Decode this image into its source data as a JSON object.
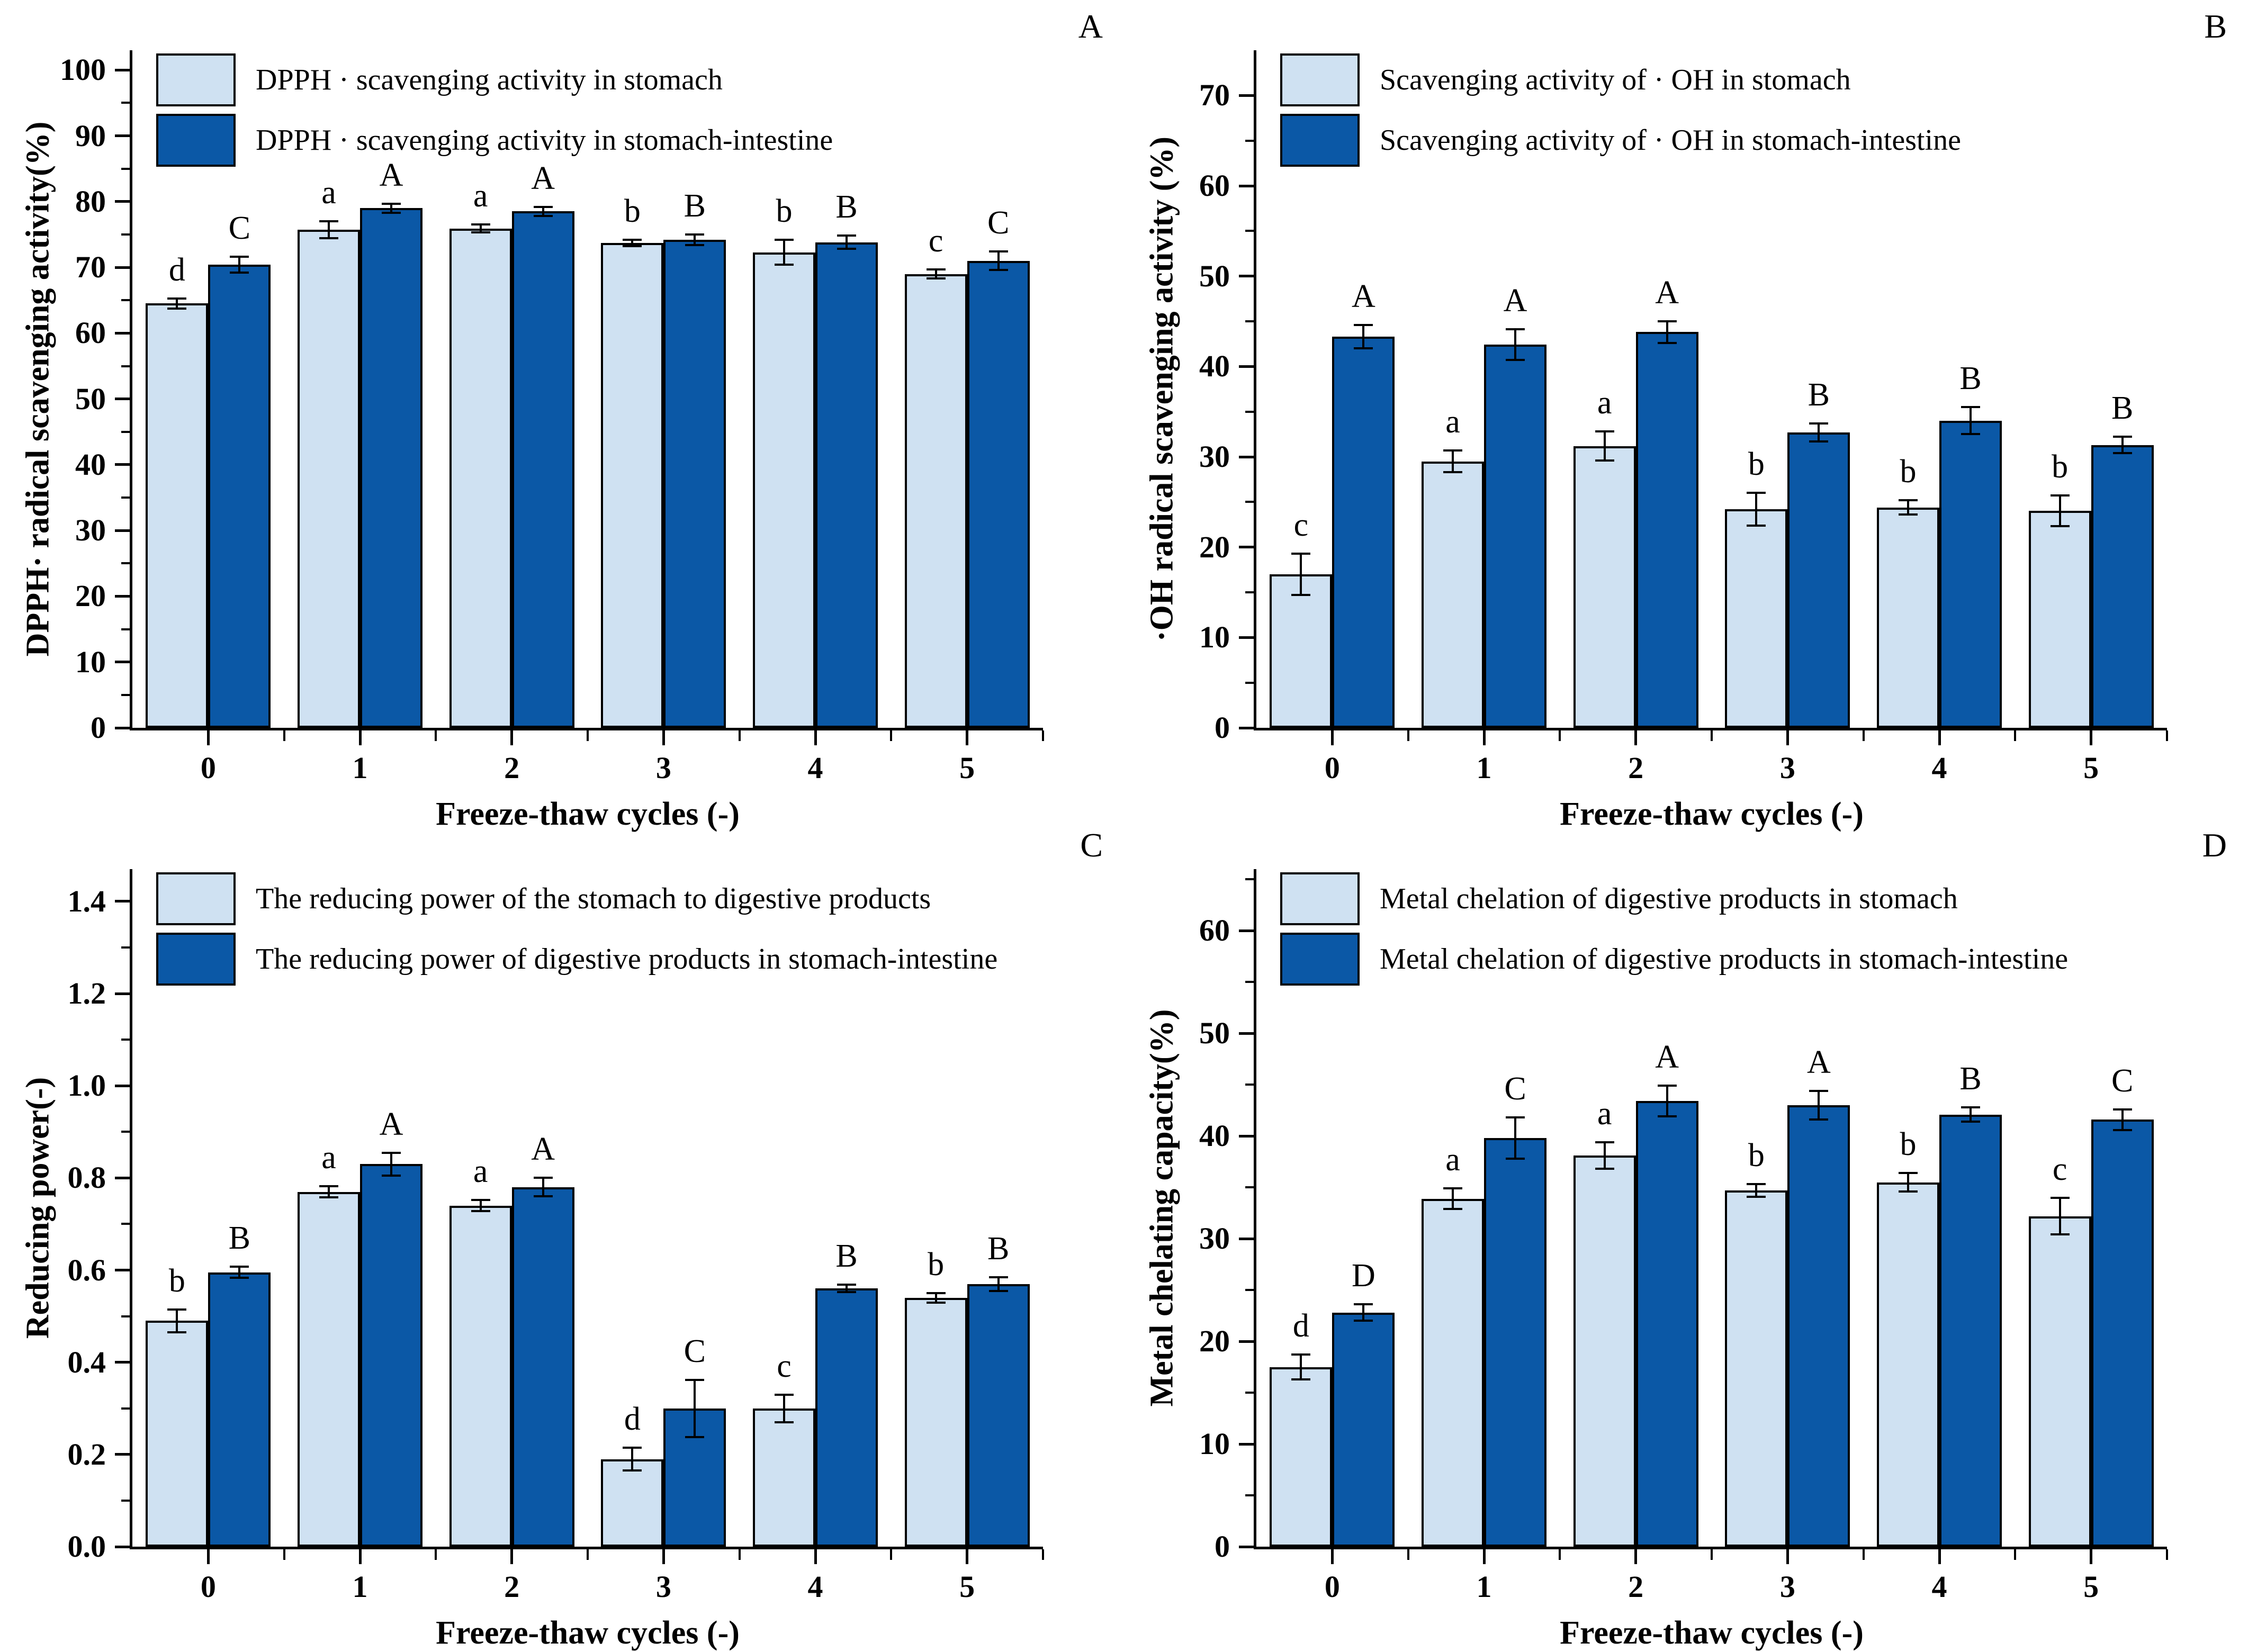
{
  "colors": {
    "light": "#cfe1f2",
    "dark": "#0b58a6",
    "edge": "#000000"
  },
  "chart_data": [
    {
      "type": "bar",
      "corner_label": "A",
      "ylabel": "DPPH· radical scavenging activity(%)",
      "xlabel": "Freeze-thaw cycles (-)",
      "categories": [
        "0",
        "1",
        "2",
        "3",
        "4",
        "5"
      ],
      "ylim": [
        0,
        103
      ],
      "ytick_step": 10,
      "ytick_max": 100,
      "y_minor_step": 5,
      "tick_decimals": 0,
      "grid": false,
      "legend_position": "top-left",
      "series": [
        {
          "name": "DPPH · scavenging activity in stomach",
          "color": "light",
          "values": [
            64.5,
            75.7,
            75.9,
            73.7,
            72.3,
            69.0
          ],
          "errors": [
            0.8,
            1.3,
            0.6,
            0.5,
            1.9,
            0.7
          ],
          "sig_letters": [
            "d",
            "a",
            "a",
            "b",
            "b",
            "c"
          ]
        },
        {
          "name": "DPPH · scavenging activity in stomach-intestine",
          "color": "dark",
          "values": [
            70.4,
            79.0,
            78.5,
            74.2,
            73.8,
            71.0
          ],
          "errors": [
            1.2,
            0.7,
            0.7,
            0.8,
            1.0,
            1.4
          ],
          "sig_letters": [
            "C",
            "A",
            "A",
            "B",
            "B",
            "C"
          ]
        }
      ]
    },
    {
      "type": "bar",
      "corner_label": "B",
      "ylabel": "·OH radical scavenging activity (%)",
      "xlabel": "Freeze-thaw cycles (-)",
      "categories": [
        "0",
        "1",
        "2",
        "3",
        "4",
        "5"
      ],
      "ylim": [
        0,
        75
      ],
      "ytick_step": 10,
      "ytick_max": 70,
      "y_minor_step": 5,
      "tick_decimals": 0,
      "grid": false,
      "legend_position": "top-left",
      "series": [
        {
          "name": "Scavenging activity of · OH in stomach",
          "color": "light",
          "values": [
            17.0,
            29.5,
            31.2,
            24.2,
            24.4,
            24.0
          ],
          "errors": [
            2.3,
            1.2,
            1.6,
            1.8,
            0.8,
            1.7
          ],
          "sig_letters": [
            "c",
            "a",
            "a",
            "b",
            "b",
            "b"
          ]
        },
        {
          "name": "Scavenging activity of · OH in stomach-intestine",
          "color": "dark",
          "values": [
            43.3,
            42.4,
            43.8,
            32.7,
            34.0,
            31.3
          ],
          "errors": [
            1.3,
            1.7,
            1.2,
            1.0,
            1.5,
            0.9
          ],
          "sig_letters": [
            "A",
            "A",
            "A",
            "B",
            "B",
            "B"
          ]
        }
      ]
    },
    {
      "type": "bar",
      "corner_label": "C",
      "ylabel": "Reducing power(-)",
      "xlabel": "Freeze-thaw cycles (-)",
      "categories": [
        "0",
        "1",
        "2",
        "3",
        "4",
        "5"
      ],
      "ylim": [
        0,
        1.47
      ],
      "ytick_step": 0.2,
      "ytick_max": 1.4,
      "y_minor_step": 0.1,
      "tick_decimals": 1,
      "grid": false,
      "legend_position": "top-left",
      "series": [
        {
          "name": "The reducing power of the stomach to digestive products",
          "color": "light",
          "values": [
            0.49,
            0.77,
            0.74,
            0.19,
            0.3,
            0.54
          ],
          "errors": [
            0.025,
            0.012,
            0.012,
            0.025,
            0.03,
            0.01
          ],
          "sig_letters": [
            "b",
            "a",
            "a",
            "d",
            "c",
            "b"
          ]
        },
        {
          "name": "The reducing power of digestive products in stomach-intestine",
          "color": "dark",
          "values": [
            0.595,
            0.83,
            0.78,
            0.3,
            0.56,
            0.57
          ],
          "errors": [
            0.012,
            0.025,
            0.02,
            0.062,
            0.008,
            0.015
          ],
          "sig_letters": [
            "B",
            "A",
            "A",
            "C",
            "B",
            "B"
          ]
        }
      ]
    },
    {
      "type": "bar",
      "corner_label": "D",
      "ylabel": "Metal chelating capacity(%)",
      "xlabel": "Freeze-thaw cycles (-)",
      "categories": [
        "0",
        "1",
        "2",
        "3",
        "4",
        "5"
      ],
      "ylim": [
        0,
        66
      ],
      "ytick_step": 10,
      "ytick_max": 60,
      "y_minor_step": 5,
      "tick_decimals": 0,
      "grid": false,
      "legend_position": "top-left",
      "series": [
        {
          "name": "Metal chelation of digestive products in stomach",
          "color": "light",
          "values": [
            17.5,
            33.9,
            38.1,
            34.7,
            35.5,
            32.2
          ],
          "errors": [
            1.2,
            1.0,
            1.3,
            0.6,
            0.9,
            1.8
          ],
          "sig_letters": [
            "d",
            "a",
            "a",
            "b",
            "b",
            "c"
          ]
        },
        {
          "name": "Metal chelation of digestive products in stomach-intestine",
          "color": "dark",
          "values": [
            22.8,
            39.8,
            43.4,
            43.0,
            42.1,
            41.6
          ],
          "errors": [
            0.8,
            2.0,
            1.5,
            1.4,
            0.7,
            1.0
          ],
          "sig_letters": [
            "D",
            "C",
            "A",
            "A",
            "B",
            "C"
          ]
        }
      ]
    }
  ]
}
